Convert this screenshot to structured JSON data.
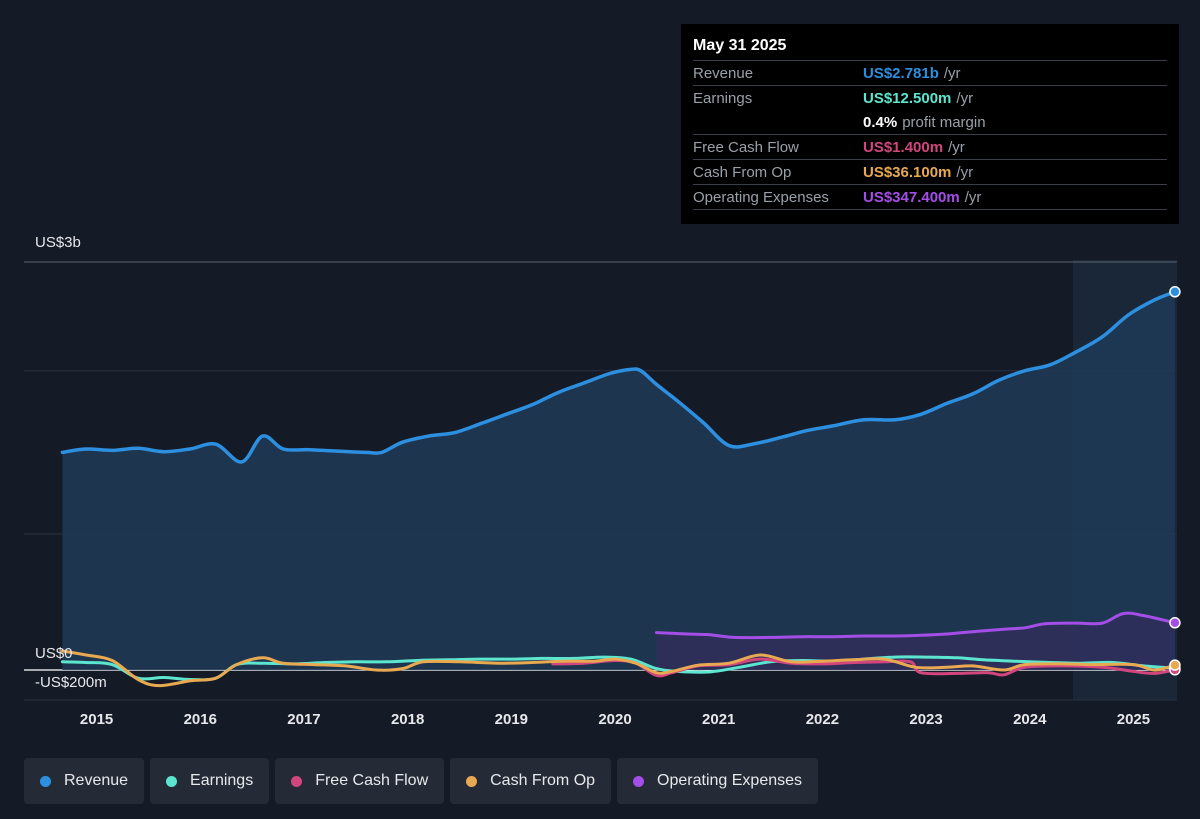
{
  "colors": {
    "revenue": "#2d8fe0",
    "earnings": "#5ce6cf",
    "fcf": "#d2467e",
    "cfo": "#e8a951",
    "opex": "#a34ee6"
  },
  "tooltip": {
    "date": "May 31 2025",
    "rows": [
      {
        "label": "Revenue",
        "value": "US$2.781b",
        "unit": "/yr",
        "color": "#2d8fe0"
      },
      {
        "label": "Earnings",
        "value": "US$12.500m",
        "unit": "/yr",
        "color": "#5ce6cf"
      },
      {
        "label": "",
        "value": "0.4%",
        "unit": "profit margin",
        "color": "#ffffff"
      },
      {
        "label": "Free Cash Flow",
        "value": "US$1.400m",
        "unit": "/yr",
        "color": "#d2467e"
      },
      {
        "label": "Cash From Op",
        "value": "US$36.100m",
        "unit": "/yr",
        "color": "#e8a951"
      },
      {
        "label": "Operating Expenses",
        "value": "US$347.400m",
        "unit": "/yr",
        "color": "#a34ee6"
      }
    ]
  },
  "legend": [
    {
      "label": "Revenue",
      "color": "#2d8fe0"
    },
    {
      "label": "Earnings",
      "color": "#5ce6cf"
    },
    {
      "label": "Free Cash Flow",
      "color": "#d2467e"
    },
    {
      "label": "Cash From Op",
      "color": "#e8a951"
    },
    {
      "label": "Operating Expenses",
      "color": "#a34ee6"
    }
  ],
  "chart_data": {
    "type": "line",
    "title": "",
    "xlabel": "",
    "ylabel": "",
    "y_tick_labels": [
      "US$3b",
      "US$0",
      "-US$200m"
    ],
    "x_tick_labels": [
      "2015",
      "2016",
      "2017",
      "2018",
      "2019",
      "2020",
      "2021",
      "2022",
      "2023",
      "2024",
      "2025"
    ],
    "xlim": [
      2014.3,
      2025.42
    ],
    "ylim": [
      -200,
      3000
    ],
    "units": "US$m",
    "grid": true,
    "legend_position": "bottom",
    "forecast_shade_from": 2024.4,
    "series": [
      {
        "name": "Revenue",
        "key": "revenue",
        "points": [
          [
            2014.67,
            1600
          ],
          [
            2014.9,
            1625
          ],
          [
            2015.15,
            1615
          ],
          [
            2015.4,
            1630
          ],
          [
            2015.65,
            1605
          ],
          [
            2015.9,
            1625
          ],
          [
            2016.15,
            1660
          ],
          [
            2016.4,
            1530
          ],
          [
            2016.6,
            1720
          ],
          [
            2016.8,
            1625
          ],
          [
            2017.05,
            1620
          ],
          [
            2017.3,
            1610
          ],
          [
            2017.6,
            1600
          ],
          [
            2017.75,
            1600
          ],
          [
            2017.95,
            1675
          ],
          [
            2018.2,
            1720
          ],
          [
            2018.45,
            1745
          ],
          [
            2018.7,
            1810
          ],
          [
            2018.95,
            1880
          ],
          [
            2019.2,
            1950
          ],
          [
            2019.45,
            2040
          ],
          [
            2019.7,
            2110
          ],
          [
            2019.95,
            2180
          ],
          [
            2020.15,
            2210
          ],
          [
            2020.25,
            2200
          ],
          [
            2020.4,
            2100
          ],
          [
            2020.6,
            1980
          ],
          [
            2020.85,
            1820
          ],
          [
            2021.1,
            1650
          ],
          [
            2021.35,
            1665
          ],
          [
            2021.6,
            1710
          ],
          [
            2021.85,
            1760
          ],
          [
            2022.1,
            1795
          ],
          [
            2022.4,
            1840
          ],
          [
            2022.7,
            1840
          ],
          [
            2022.95,
            1880
          ],
          [
            2023.2,
            1960
          ],
          [
            2023.45,
            2030
          ],
          [
            2023.7,
            2130
          ],
          [
            2023.95,
            2200
          ],
          [
            2024.2,
            2245
          ],
          [
            2024.45,
            2340
          ],
          [
            2024.7,
            2450
          ],
          [
            2024.95,
            2610
          ],
          [
            2025.2,
            2720
          ],
          [
            2025.4,
            2781
          ]
        ]
      },
      {
        "name": "Earnings",
        "key": "earnings",
        "points": [
          [
            2014.67,
            60
          ],
          [
            2014.9,
            55
          ],
          [
            2015.15,
            40
          ],
          [
            2015.4,
            -60
          ],
          [
            2015.65,
            -55
          ],
          [
            2015.9,
            -70
          ],
          [
            2016.15,
            -60
          ],
          [
            2016.35,
            40
          ],
          [
            2016.6,
            50
          ],
          [
            2016.9,
            45
          ],
          [
            2017.2,
            55
          ],
          [
            2017.5,
            60
          ],
          [
            2017.8,
            60
          ],
          [
            2018.1,
            70
          ],
          [
            2018.4,
            75
          ],
          [
            2018.7,
            80
          ],
          [
            2019.0,
            80
          ],
          [
            2019.3,
            85
          ],
          [
            2019.6,
            85
          ],
          [
            2019.9,
            95
          ],
          [
            2020.15,
            80
          ],
          [
            2020.4,
            10
          ],
          [
            2020.6,
            -10
          ],
          [
            2020.9,
            -15
          ],
          [
            2021.2,
            20
          ],
          [
            2021.5,
            60
          ],
          [
            2021.8,
            70
          ],
          [
            2022.1,
            65
          ],
          [
            2022.4,
            80
          ],
          [
            2022.7,
            95
          ],
          [
            2023.0,
            95
          ],
          [
            2023.3,
            90
          ],
          [
            2023.55,
            75
          ],
          [
            2023.85,
            65
          ],
          [
            2024.2,
            55
          ],
          [
            2024.5,
            50
          ],
          [
            2024.8,
            55
          ],
          [
            2025.1,
            30
          ],
          [
            2025.4,
            12.5
          ]
        ]
      },
      {
        "name": "Free Cash Flow",
        "key": "fcf",
        "points": [
          [
            2019.4,
            45
          ],
          [
            2019.7,
            50
          ],
          [
            2020.0,
            70
          ],
          [
            2020.2,
            50
          ],
          [
            2020.4,
            -40
          ],
          [
            2020.55,
            -20
          ],
          [
            2020.8,
            30
          ],
          [
            2021.1,
            40
          ],
          [
            2021.4,
            80
          ],
          [
            2021.7,
            50
          ],
          [
            2022.0,
            45
          ],
          [
            2022.3,
            55
          ],
          [
            2022.6,
            60
          ],
          [
            2022.85,
            60
          ],
          [
            2022.95,
            -20
          ],
          [
            2023.3,
            -25
          ],
          [
            2023.6,
            -20
          ],
          [
            2023.75,
            -35
          ],
          [
            2023.95,
            20
          ],
          [
            2024.3,
            30
          ],
          [
            2024.7,
            20
          ],
          [
            2025.0,
            -10
          ],
          [
            2025.2,
            -25
          ],
          [
            2025.4,
            1.4
          ]
        ]
      },
      {
        "name": "Cash From Op",
        "key": "cfo",
        "points": [
          [
            2014.67,
            140
          ],
          [
            2014.9,
            110
          ],
          [
            2015.15,
            70
          ],
          [
            2015.4,
            -70
          ],
          [
            2015.6,
            -115
          ],
          [
            2015.9,
            -80
          ],
          [
            2016.15,
            -60
          ],
          [
            2016.35,
            40
          ],
          [
            2016.6,
            90
          ],
          [
            2016.8,
            50
          ],
          [
            2017.1,
            40
          ],
          [
            2017.4,
            30
          ],
          [
            2017.7,
            0
          ],
          [
            2017.95,
            10
          ],
          [
            2018.15,
            60
          ],
          [
            2018.5,
            60
          ],
          [
            2018.9,
            50
          ],
          [
            2019.2,
            55
          ],
          [
            2019.5,
            65
          ],
          [
            2019.8,
            65
          ],
          [
            2020.0,
            80
          ],
          [
            2020.2,
            50
          ],
          [
            2020.4,
            -20
          ],
          [
            2020.55,
            -10
          ],
          [
            2020.8,
            35
          ],
          [
            2021.1,
            50
          ],
          [
            2021.4,
            110
          ],
          [
            2021.7,
            60
          ],
          [
            2022.0,
            65
          ],
          [
            2022.3,
            75
          ],
          [
            2022.6,
            80
          ],
          [
            2022.9,
            20
          ],
          [
            2023.2,
            20
          ],
          [
            2023.45,
            30
          ],
          [
            2023.75,
            0
          ],
          [
            2023.95,
            40
          ],
          [
            2024.3,
            45
          ],
          [
            2024.6,
            40
          ],
          [
            2025.0,
            40
          ],
          [
            2025.2,
            0
          ],
          [
            2025.4,
            36.1
          ]
        ]
      },
      {
        "name": "Operating Expenses",
        "key": "opex",
        "points": [
          [
            2020.4,
            275
          ],
          [
            2020.7,
            265
          ],
          [
            2020.9,
            260
          ],
          [
            2021.15,
            240
          ],
          [
            2021.5,
            240
          ],
          [
            2021.8,
            245
          ],
          [
            2022.1,
            245
          ],
          [
            2022.4,
            250
          ],
          [
            2022.7,
            250
          ],
          [
            2022.95,
            255
          ],
          [
            2023.2,
            265
          ],
          [
            2023.5,
            285
          ],
          [
            2023.75,
            300
          ],
          [
            2023.95,
            310
          ],
          [
            2024.15,
            340
          ],
          [
            2024.45,
            345
          ],
          [
            2024.7,
            345
          ],
          [
            2024.9,
            415
          ],
          [
            2025.1,
            400
          ],
          [
            2025.4,
            347.4
          ]
        ]
      }
    ]
  }
}
